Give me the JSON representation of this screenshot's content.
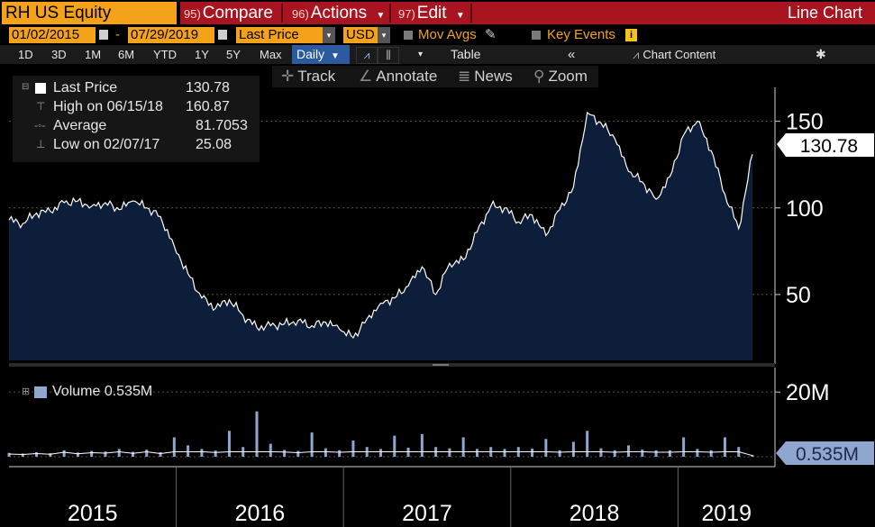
{
  "toolbar": {
    "ticker": "RH US Equity",
    "compare_num": "95)",
    "compare": "Compare",
    "actions_num": "96)",
    "actions": "Actions",
    "edit_num": "97)",
    "edit": "Edit",
    "view_title": "Line Chart"
  },
  "options": {
    "start_date": "01/02/2015",
    "end_date": "07/29/2019",
    "field": "Last Price",
    "currency": "USD",
    "mov_avgs": "Mov Avgs",
    "key_events": "Key Events"
  },
  "ranges": [
    "1D",
    "3D",
    "1M",
    "6M",
    "YTD",
    "1Y",
    "5Y",
    "Max"
  ],
  "frequency": "Daily",
  "table_label": "Table",
  "collapse_label": "«",
  "chart_content_label": "Chart Content",
  "tools": {
    "track": "Track",
    "annotate": "Annotate",
    "news": "News",
    "zoom": "Zoom"
  },
  "legend": {
    "last_price_label": "Last Price",
    "last_price_value": "130.78",
    "high_label": "High on 06/15/18",
    "high_value": "160.87",
    "average_label": "Average",
    "average_value": "81.7053",
    "low_label": "Low on 02/07/17",
    "low_value": "25.08"
  },
  "volume_legend": "Volume 0.535M",
  "colors": {
    "accent": "#f5a21b",
    "title_bar": "#a8141f",
    "price_fill": "#0d1e3a",
    "volume_bar": "#8fa6cf"
  },
  "chart_data": [
    {
      "type": "area",
      "series": [
        {
          "name": "Last Price",
          "x": [
            "2015-01",
            "2015-02",
            "2015-03",
            "2015-04",
            "2015-05",
            "2015-06",
            "2015-07",
            "2015-08",
            "2015-09",
            "2015-10",
            "2015-11",
            "2015-12",
            "2016-01",
            "2016-02",
            "2016-03",
            "2016-04",
            "2016-05",
            "2016-06",
            "2016-07",
            "2016-08",
            "2016-09",
            "2016-10",
            "2016-11",
            "2016-12",
            "2017-01",
            "2017-02",
            "2017-03",
            "2017-04",
            "2017-05",
            "2017-06",
            "2017-07",
            "2017-08",
            "2017-09",
            "2017-10",
            "2017-11",
            "2017-12",
            "2018-01",
            "2018-02",
            "2018-03",
            "2018-04",
            "2018-05",
            "2018-06",
            "2018-07",
            "2018-08",
            "2018-09",
            "2018-10",
            "2018-11",
            "2018-12",
            "2019-01",
            "2019-02",
            "2019-03",
            "2019-04",
            "2019-05",
            "2019-06",
            "2019-07"
          ],
          "values": [
            93,
            91,
            97,
            98,
            103,
            104,
            101,
            103,
            99,
            104,
            100,
            95,
            78,
            62,
            48,
            42,
            47,
            38,
            31,
            32,
            33,
            35,
            32,
            34,
            30,
            25,
            36,
            45,
            48,
            55,
            66,
            50,
            68,
            70,
            86,
            101,
            100,
            92,
            96,
            84,
            99,
            112,
            155,
            149,
            140,
            121,
            115,
            105,
            118,
            142,
            150,
            133,
            108,
            88,
            131
          ]
        }
      ],
      "yticks": [
        50,
        100,
        150
      ],
      "ylim": [
        12,
        168
      ],
      "current_value_label": "130.78",
      "xticks": [
        "2015",
        "2016",
        "2017",
        "2018",
        "2019"
      ]
    },
    {
      "type": "bar",
      "series": [
        {
          "name": "Volume",
          "values_M": [
            1.2,
            1.0,
            1.4,
            1.1,
            2.0,
            1.3,
            1.8,
            1.6,
            2.4,
            1.5,
            2.2,
            1.4,
            6.0,
            3.5,
            2.4,
            1.9,
            8.0,
            3.0,
            14.0,
            4.0,
            2.1,
            1.8,
            7.5,
            2.6,
            2.0,
            5.0,
            3.0,
            2.4,
            6.5,
            2.8,
            7.0,
            3.0,
            2.6,
            6.0,
            2.4,
            3.0,
            2.4,
            3.0,
            2.5,
            5.5,
            2.0,
            4.6,
            8.0,
            2.6,
            2.0,
            3.5,
            2.2,
            2.0,
            2.0,
            6.0,
            2.4,
            2.0,
            6.0,
            3.0,
            0.535
          ]
        }
      ],
      "yticks": [
        {
          "value": 20,
          "label": "20M"
        }
      ],
      "current_value_label": "0.535M"
    }
  ]
}
